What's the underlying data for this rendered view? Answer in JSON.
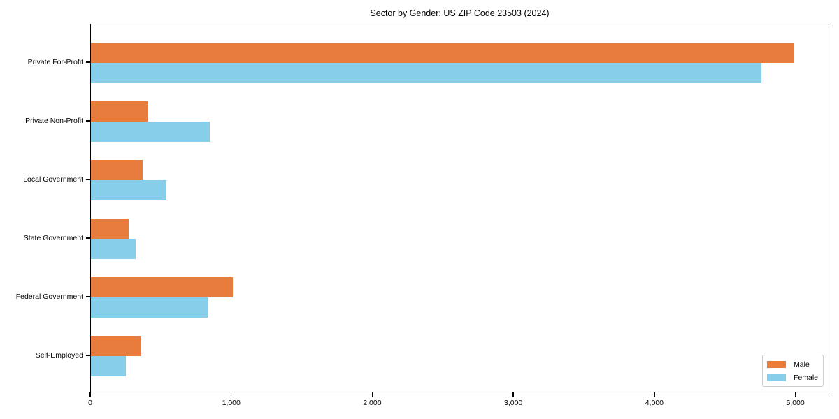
{
  "title": "Sector by Gender: US ZIP Code 23503 (2024)",
  "chart_data": {
    "type": "bar",
    "orientation": "horizontal",
    "title": "Sector by Gender: US ZIP Code 23503 (2024)",
    "categories": [
      "Private For-Profit",
      "Private Non-Profit",
      "Local Government",
      "State Government",
      "Federal Government",
      "Self-Employed"
    ],
    "series": [
      {
        "name": "Male",
        "color": "#e87c3d",
        "values": [
          4985,
          400,
          367,
          268,
          1006,
          357
        ]
      },
      {
        "name": "Female",
        "color": "#87ceeb",
        "values": [
          4752,
          842,
          535,
          317,
          832,
          248
        ]
      }
    ],
    "xlabel": "",
    "ylabel": "",
    "xlim": [
      0,
      5240
    ],
    "x_ticks": [
      0,
      1000,
      2000,
      3000,
      4000,
      5000
    ],
    "x_tick_labels": [
      "0",
      "1,000",
      "2,000",
      "3,000",
      "4,000",
      "5,000"
    ],
    "grid": false,
    "legend_position": "lower right"
  },
  "legend": {
    "items": [
      {
        "label": "Male",
        "color": "#e87c3d"
      },
      {
        "label": "Female",
        "color": "#87ceeb"
      }
    ]
  }
}
